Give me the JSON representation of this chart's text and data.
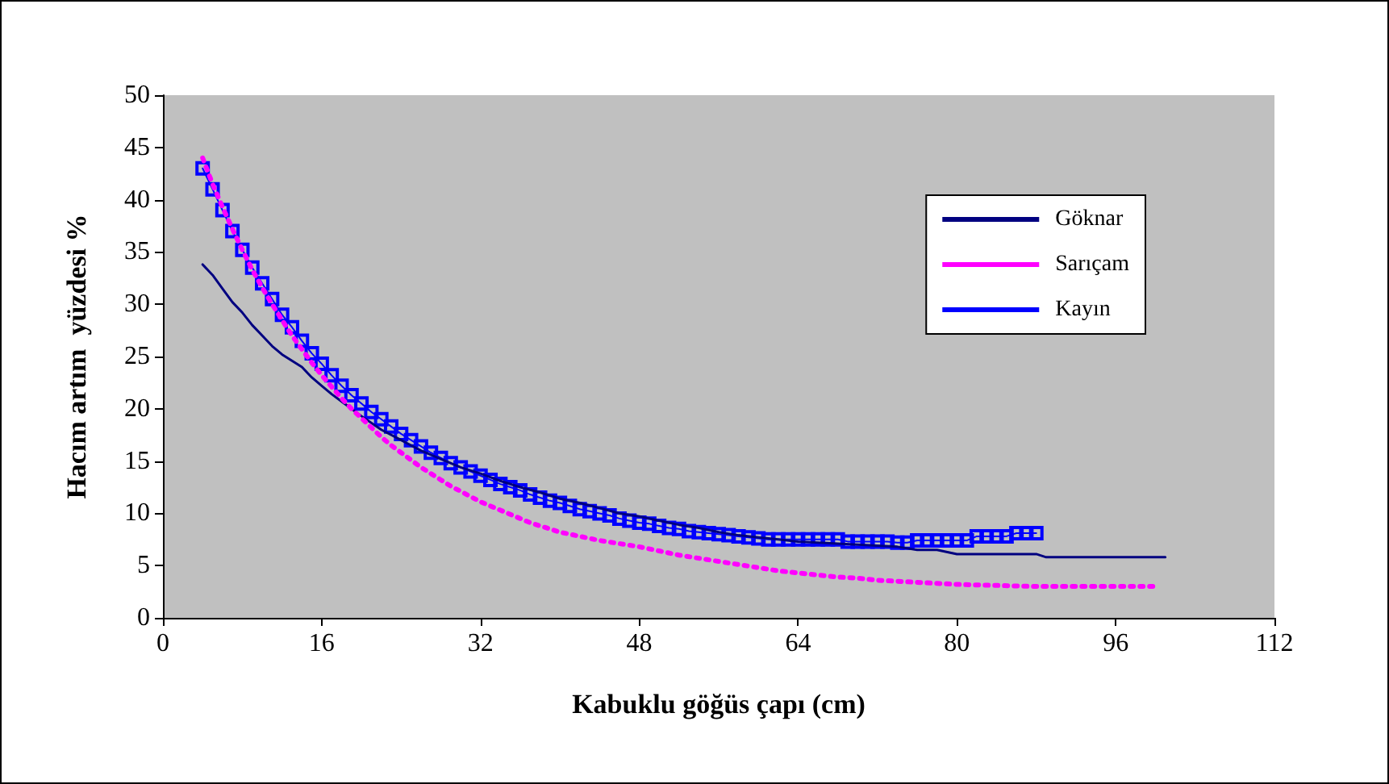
{
  "chart_data": {
    "type": "line",
    "xlabel": "Kabuklu göğüs çapı (cm)",
    "ylabel": "Hacım artım  yüzdesi %",
    "xlim": [
      0,
      112
    ],
    "xticks": [
      0,
      16,
      32,
      48,
      64,
      80,
      96,
      112
    ],
    "ylim": [
      0,
      50
    ],
    "yticks": [
      0,
      5,
      10,
      15,
      20,
      25,
      30,
      35,
      40,
      45,
      50
    ],
    "grid": false,
    "legend": "top right",
    "series": [
      {
        "name": "Göknar",
        "color": "#000080",
        "marker": "none",
        "line_style": "solid",
        "x": [
          4,
          5,
          6,
          7,
          8,
          9,
          10,
          11,
          12,
          13,
          14,
          15,
          16,
          17,
          18,
          19,
          20,
          22,
          24,
          26,
          28,
          30,
          32,
          34,
          36,
          38,
          40,
          42,
          44,
          46,
          48,
          50,
          52,
          54,
          56,
          58,
          60,
          62,
          64,
          66,
          68,
          70,
          72,
          74,
          76,
          78,
          80,
          84,
          88,
          89,
          101
        ],
        "values": [
          33.8,
          32.8,
          31.5,
          30.2,
          29.2,
          28,
          27,
          26,
          25.2,
          24.6,
          24,
          23,
          22.2,
          21.4,
          20.7,
          20,
          19.3,
          18,
          17,
          16,
          15.2,
          14.4,
          13.8,
          13.1,
          12.5,
          12,
          11.4,
          11,
          10.5,
          10,
          9.7,
          9.3,
          8.9,
          8.6,
          8.2,
          7.9,
          7.7,
          7.5,
          7.3,
          7.2,
          7.1,
          7,
          6.9,
          6.8,
          6.5,
          6.5,
          6.1,
          6.1,
          6.1,
          5.8,
          5.8
        ]
      },
      {
        "name": "Sarıçam",
        "color": "#ff00ff",
        "marker": "none",
        "line_style": "dotted",
        "x": [
          4,
          5,
          6,
          7,
          8,
          9,
          10,
          11,
          12,
          13,
          14,
          15,
          16,
          17,
          18,
          19,
          20,
          21,
          22,
          23,
          24,
          25,
          26,
          27,
          28,
          29,
          30,
          31,
          32,
          33,
          34,
          35,
          36,
          37,
          38,
          39,
          40,
          42,
          44,
          46,
          48,
          50,
          52,
          54,
          56,
          58,
          60,
          62,
          64,
          66,
          68,
          70,
          72,
          74,
          76,
          78,
          80,
          84,
          88,
          100
        ],
        "values": [
          44,
          41.5,
          39.3,
          37.2,
          35.2,
          33.3,
          31.6,
          30,
          28.5,
          27,
          25.7,
          24.4,
          23.2,
          22.1,
          21,
          20,
          19.1,
          18.2,
          17.3,
          16.5,
          15.8,
          15.1,
          14.4,
          13.8,
          13.2,
          12.6,
          12.1,
          11.6,
          11.1,
          10.7,
          10.3,
          9.9,
          9.5,
          9.1,
          8.8,
          8.5,
          8.2,
          7.8,
          7.4,
          7.1,
          6.8,
          6.4,
          6,
          5.7,
          5.4,
          5.1,
          4.8,
          4.5,
          4.3,
          4.1,
          3.9,
          3.8,
          3.6,
          3.5,
          3.4,
          3.3,
          3.2,
          3.1,
          3,
          3
        ]
      },
      {
        "name": "Kayın",
        "color": "#0000ff",
        "marker": "square",
        "line_style": "solid",
        "x": [
          4,
          5,
          6,
          7,
          8,
          9,
          10,
          11,
          12,
          13,
          14,
          15,
          16,
          17,
          18,
          19,
          20,
          21,
          22,
          23,
          24,
          25,
          26,
          27,
          28,
          29,
          30,
          31,
          32,
          33,
          34,
          35,
          36,
          37,
          38,
          39,
          40,
          41,
          42,
          43,
          44,
          45,
          46,
          47,
          48,
          49,
          50,
          51,
          52,
          53,
          54,
          55,
          56,
          57,
          58,
          59,
          60,
          61,
          62,
          63,
          64,
          65,
          66,
          67,
          68,
          69,
          70,
          71,
          72,
          73,
          74,
          75,
          76,
          77,
          78,
          79,
          80,
          81,
          82,
          83,
          84,
          85,
          86,
          87,
          88
        ],
        "values": [
          43,
          41,
          39,
          37,
          35.2,
          33.5,
          32,
          30.5,
          29,
          27.8,
          26.5,
          25.3,
          24.3,
          23.2,
          22.2,
          21.3,
          20.5,
          19.7,
          19,
          18.3,
          17.6,
          17,
          16.4,
          15.8,
          15.3,
          14.8,
          14.4,
          14,
          13.6,
          13.2,
          12.8,
          12.5,
          12.2,
          11.8,
          11.5,
          11.2,
          11,
          10.7,
          10.4,
          10.2,
          10,
          9.8,
          9.5,
          9.3,
          9.1,
          9,
          8.8,
          8.6,
          8.5,
          8.3,
          8.2,
          8.1,
          8,
          7.9,
          7.8,
          7.7,
          7.6,
          7.5,
          7.5,
          7.5,
          7.5,
          7.5,
          7.5,
          7.5,
          7.5,
          7.3,
          7.3,
          7.3,
          7.3,
          7.3,
          7.2,
          7.2,
          7.4,
          7.4,
          7.4,
          7.4,
          7.4,
          7.4,
          7.8,
          7.8,
          7.8,
          7.8,
          8.1,
          8.1,
          8.1
        ]
      }
    ]
  }
}
